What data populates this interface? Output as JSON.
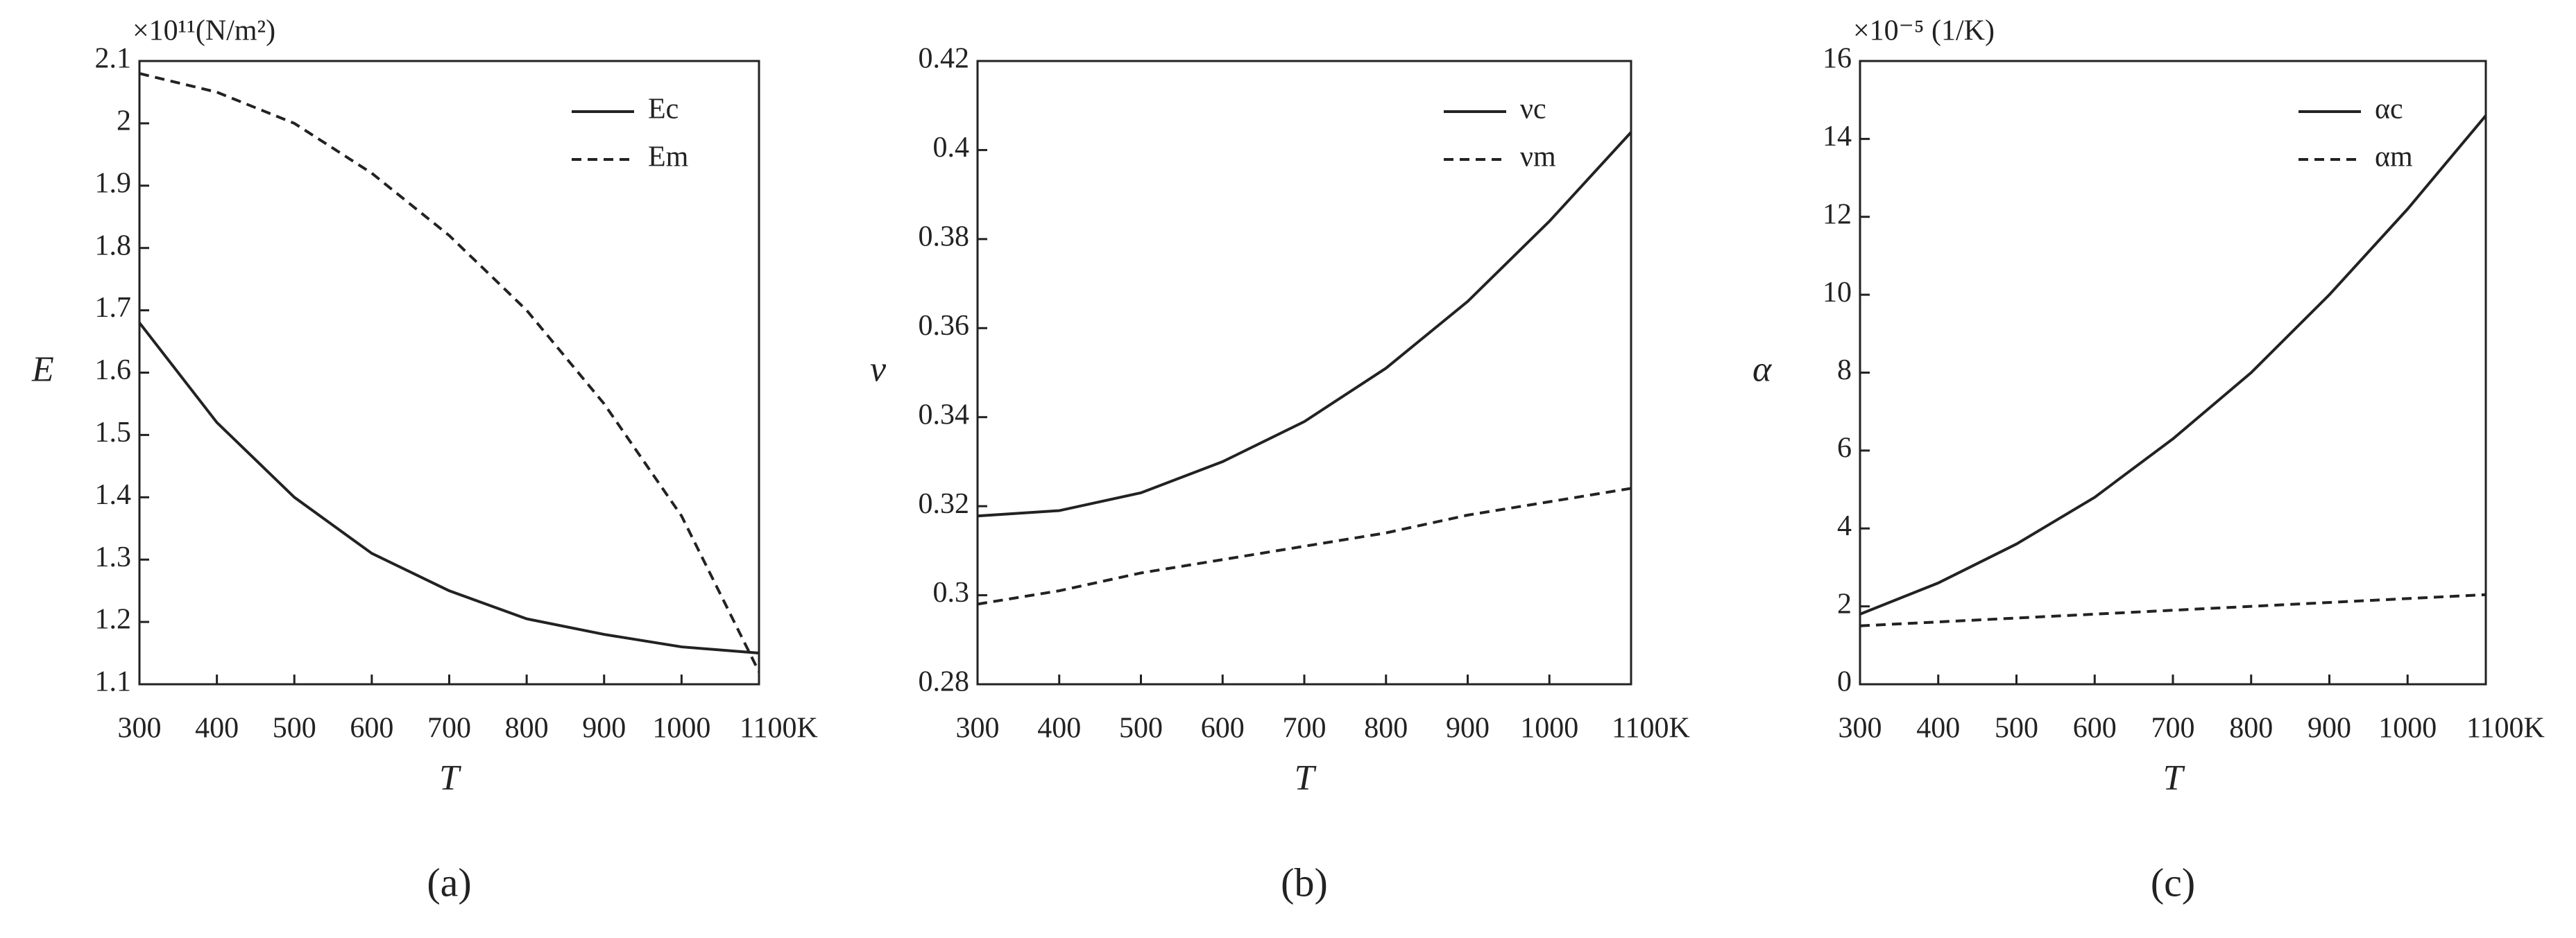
{
  "chart_data": [
    {
      "type": "line",
      "panel_label": "(a)",
      "annotation": "×10¹¹(N/m²)",
      "xlabel": "T",
      "ylabel": "E",
      "x": [
        300,
        400,
        500,
        600,
        700,
        800,
        900,
        1000,
        1100
      ],
      "series": [
        {
          "name": "Ec",
          "color": "#222222",
          "style": "solid",
          "values": [
            1.68,
            1.52,
            1.4,
            1.31,
            1.25,
            1.205,
            1.18,
            1.16,
            1.15
          ]
        },
        {
          "name": "Em",
          "color": "#222222",
          "style": "dashed",
          "values": [
            2.08,
            2.05,
            2.0,
            1.92,
            1.82,
            1.7,
            1.55,
            1.37,
            1.12
          ]
        }
      ],
      "xlim": [
        300,
        1100
      ],
      "xticks": [
        300,
        400,
        500,
        600,
        700,
        800,
        900,
        1000,
        {
          "value": 1100,
          "label": "1100K"
        }
      ],
      "ylim": [
        1.1,
        2.1
      ],
      "yticks": [
        1.1,
        1.2,
        1.3,
        1.4,
        1.5,
        1.6,
        1.7,
        1.8,
        1.9,
        2,
        2.1
      ],
      "legend": "upper right"
    },
    {
      "type": "line",
      "panel_label": "(b)",
      "xlabel": "T",
      "ylabel": "ν",
      "x": [
        300,
        400,
        500,
        600,
        700,
        800,
        900,
        1000,
        1100
      ],
      "series": [
        {
          "name": "νc",
          "color": "#222222",
          "style": "solid",
          "values": [
            0.3178,
            0.319,
            0.323,
            0.33,
            0.339,
            0.351,
            0.366,
            0.384,
            0.404
          ]
        },
        {
          "name": "νm",
          "color": "#222222",
          "style": "dashed",
          "values": [
            0.298,
            0.301,
            0.305,
            0.308,
            0.311,
            0.314,
            0.318,
            0.321,
            0.324
          ]
        }
      ],
      "xlim": [
        300,
        1100
      ],
      "xticks": [
        300,
        400,
        500,
        600,
        700,
        800,
        900,
        1000,
        {
          "value": 1100,
          "label": "1100K"
        }
      ],
      "ylim": [
        0.28,
        0.42
      ],
      "yticks": [
        0.28,
        0.3,
        0.32,
        0.34,
        0.36,
        0.38,
        0.4,
        0.42
      ],
      "legend": "upper right"
    },
    {
      "type": "line",
      "panel_label": "(c)",
      "annotation": "×10⁻⁵ (1/K)",
      "xlabel": "T",
      "ylabel": "α",
      "x": [
        300,
        400,
        500,
        600,
        700,
        800,
        900,
        1000,
        1100
      ],
      "series": [
        {
          "name": "αc",
          "color": "#222222",
          "style": "solid",
          "values": [
            1.8,
            2.6,
            3.6,
            4.8,
            6.3,
            8.0,
            10.0,
            12.2,
            14.6
          ]
        },
        {
          "name": "αm",
          "color": "#222222",
          "style": "dashed",
          "values": [
            1.5,
            1.6,
            1.7,
            1.8,
            1.9,
            2.0,
            2.1,
            2.2,
            2.3
          ]
        }
      ],
      "xlim": [
        300,
        1100
      ],
      "xticks": [
        300,
        400,
        500,
        600,
        700,
        800,
        900,
        1000,
        {
          "value": 1100,
          "label": "1100K"
        }
      ],
      "ylim": [
        0,
        16
      ],
      "yticks": [
        0,
        2,
        4,
        6,
        8,
        10,
        12,
        14,
        16
      ],
      "legend": "upper right"
    }
  ]
}
